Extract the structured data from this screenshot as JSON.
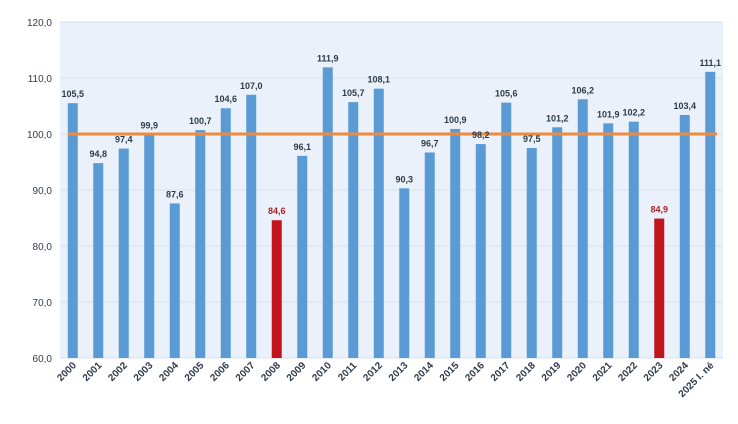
{
  "chart_data": {
    "type": "bar",
    "title": "",
    "xlabel": "",
    "ylabel": "",
    "ylim": [
      60,
      120
    ],
    "yticks": [
      60,
      70,
      80,
      90,
      100,
      110,
      120
    ],
    "ytick_labels": [
      "60,0",
      "70,0",
      "80,0",
      "90,0",
      "100,0",
      "110,0",
      "120,0"
    ],
    "categories": [
      "2000",
      "2001",
      "2002",
      "2003",
      "2004",
      "2005",
      "2006",
      "2007",
      "2008",
      "2009",
      "2010",
      "2011",
      "2012",
      "2013",
      "2014",
      "2015",
      "2016",
      "2017",
      "2018",
      "2019",
      "2020",
      "2021",
      "2022",
      "2023",
      "2024",
      "2025 I. né"
    ],
    "values": [
      105.5,
      94.8,
      97.4,
      99.9,
      87.6,
      100.7,
      104.6,
      107.0,
      84.6,
      96.1,
      111.9,
      105.7,
      108.1,
      90.3,
      96.7,
      100.9,
      98.2,
      105.6,
      97.5,
      101.2,
      106.2,
      101.9,
      102.2,
      84.9,
      103.4,
      111.1
    ],
    "value_labels": [
      "105,5",
      "94,8",
      "97,4",
      "99,9",
      "87,6",
      "100,7",
      "104,6",
      "107,0",
      "84,6",
      "96,1",
      "111,9",
      "105,7",
      "108,1",
      "90,3",
      "96,7",
      "100,9",
      "98,2",
      "105,6",
      "97,5",
      "101,2",
      "106,2",
      "101,9",
      "102,2",
      "84,9",
      "103,4",
      "111,1"
    ],
    "highlight_categories": [
      "2008",
      "2023"
    ],
    "reference_line": 100,
    "grid": true,
    "legend": "none",
    "colors": {
      "bar": "#5b9bd5",
      "bar_stroke": "#3f7fbf",
      "highlight_bar": "#c0161c",
      "reference_line": "#f08a3c",
      "grid": "#d9e1ea",
      "plot_background": "#eaf1fa",
      "highlight_label": "#b11f24"
    }
  }
}
